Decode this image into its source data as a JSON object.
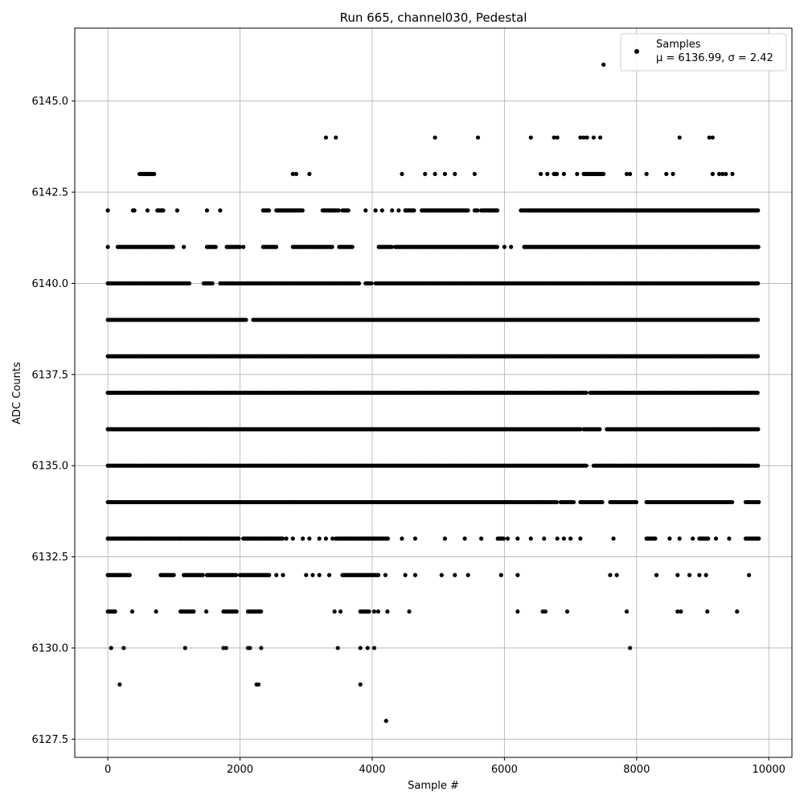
{
  "chart_data": {
    "type": "scatter",
    "title": "Run 665, channel030, Pedestal",
    "xlabel": "Sample #",
    "ylabel": "ADC Counts",
    "xlim": [
      -500,
      10350
    ],
    "ylim": [
      6127.0,
      6147.0
    ],
    "xticks": [
      0,
      2000,
      4000,
      6000,
      8000,
      10000
    ],
    "yticks": [
      6127.5,
      6130.0,
      6132.5,
      6135.0,
      6137.5,
      6140.0,
      6142.5,
      6145.0
    ],
    "grid": true,
    "legend": {
      "placement": "top-right",
      "series_label": "Samples",
      "stats_label": "μ = 6136.99, σ = 2.42"
    },
    "marker_color": "#000000",
    "series": [
      {
        "name": "Samples",
        "level_bands": [
          {
            "y": 6128,
            "x": [
              4210
            ]
          },
          {
            "y": 6129,
            "x": [
              180,
              2250,
              2280,
              3820
            ]
          },
          {
            "y": 6130,
            "x": [
              50,
              240,
              1170,
              1750,
              1790,
              2120,
              2150,
              2320,
              3480,
              3820,
              3930,
              4030,
              7900
            ]
          },
          {
            "y": 6131,
            "x": [
              [
                0,
                130
              ],
              370,
              730,
              [
                1100,
                1300
              ],
              1490,
              [
                1750,
                1950
              ],
              [
                2120,
                2320
              ],
              3430,
              3520,
              [
                3820,
                3960
              ],
              4030,
              4090,
              4230,
              4560,
              6200,
              6580,
              6620,
              6950,
              7850,
              8620,
              8670,
              9070,
              9520
            ]
          },
          {
            "y": 6132,
            "x": [
              [
                0,
                350
              ],
              [
                800,
                1000
              ],
              [
                1150,
                1450
              ],
              [
                1500,
                1950
              ],
              [
                2000,
                2450
              ],
              2550,
              2650,
              3000,
              3100,
              3200,
              3350,
              [
                3550,
                3850
              ],
              [
                3850,
                4100
              ],
              4200,
              4500,
              4650,
              5050,
              5250,
              5450,
              5950,
              6200,
              7600,
              7700,
              8300,
              8620,
              8800,
              8950,
              9050,
              9700
            ]
          },
          {
            "y": 6133,
            "x": [
              [
                0,
                1100
              ],
              [
                1100,
                2000
              ],
              [
                2050,
                2650
              ],
              2700,
              2800,
              2950,
              3050,
              3200,
              3300,
              3400,
              [
                3450,
                3950
              ],
              [
                3950,
                4250
              ],
              4450,
              4650,
              5100,
              5400,
              5650,
              [
                5900,
                6000
              ],
              6050,
              6200,
              6400,
              6600,
              6800,
              6900,
              7000,
              7150,
              7650,
              [
                8150,
                8300
              ],
              8500,
              8650,
              8850,
              [
                8950,
                9100
              ],
              9200,
              9400,
              [
                9650,
                9850
              ]
            ]
          },
          {
            "y": 6134,
            "x": [
              [
                0,
                2800
              ],
              [
                2800,
                4400
              ],
              [
                4400,
                5250
              ],
              [
                5250,
                6000
              ],
              [
                6000,
                6550
              ],
              [
                6550,
                6800
              ],
              [
                6850,
                7050
              ],
              [
                7150,
                7500
              ],
              [
                7600,
                8000
              ],
              [
                8150,
                9050
              ],
              [
                9050,
                9450
              ],
              [
                9650,
                9850
              ]
            ]
          },
          {
            "y": 6135,
            "x": [
              [
                0,
                7250
              ],
              [
                7350,
                9850
              ]
            ]
          },
          {
            "y": 6136,
            "x": [
              [
                0,
                7150
              ],
              [
                7200,
                7450
              ],
              [
                7550,
                9850
              ]
            ]
          },
          {
            "y": 6137,
            "x": [
              [
                0,
                7250
              ],
              [
                7300,
                9850
              ]
            ]
          },
          {
            "y": 6138,
            "x": [
              [
                0,
                9850
              ]
            ]
          },
          {
            "y": 6139,
            "x": [
              [
                0,
                2100
              ],
              [
                2200,
                9850
              ]
            ]
          },
          {
            "y": 6140,
            "x": [
              [
                0,
                1250
              ],
              [
                1450,
                1600
              ],
              [
                1700,
                2300
              ],
              [
                2300,
                2700
              ],
              [
                2700,
                3800
              ],
              [
                3900,
                4000
              ],
              [
                4050,
                9850
              ]
            ]
          },
          {
            "y": 6141,
            "x": [
              0,
              [
                150,
                1000
              ],
              1150,
              [
                1500,
                1650
              ],
              [
                1800,
                2000
              ],
              2050,
              [
                2350,
                2550
              ],
              [
                2800,
                3400
              ],
              [
                3500,
                3700
              ],
              [
                4100,
                4300
              ],
              [
                4350,
                5900
              ],
              6000,
              6100,
              [
                6300,
                9850
              ]
            ]
          },
          {
            "y": 6142,
            "x": [
              0,
              [
                380,
                420
              ],
              600,
              [
                750,
                850
              ],
              1050,
              1500,
              1700,
              [
                2350,
                2450
              ],
              [
                2550,
                2950
              ],
              [
                3250,
                3500
              ],
              [
                3550,
                3650
              ],
              3900,
              4050,
              4150,
              4300,
              4400,
              [
                4500,
                4650
              ],
              [
                4750,
                5250
              ],
              [
                5250,
                5450
              ],
              [
                5550,
                5600
              ],
              [
                5650,
                5900
              ],
              [
                6250,
                9850
              ]
            ]
          },
          {
            "y": 6143,
            "x": [
              [
                480,
                700
              ],
              2800,
              2850,
              3050,
              4450,
              4800,
              4950,
              5100,
              5250,
              5550,
              6550,
              6650,
              [
                6750,
                6800
              ],
              6900,
              7100,
              [
                7200,
                7300
              ],
              [
                7300,
                7500
              ],
              7850,
              7900,
              8150,
              8450,
              8550,
              9150,
              9250,
              9300,
              9350,
              9450
            ]
          },
          {
            "y": 6144,
            "x": [
              3300,
              3450,
              4950,
              5600,
              6400,
              6750,
              6800,
              7150,
              7200,
              7250,
              7350,
              7450,
              8650,
              9100,
              9150
            ]
          },
          {
            "y": 6146,
            "x": [
              7500
            ]
          }
        ]
      }
    ]
  }
}
